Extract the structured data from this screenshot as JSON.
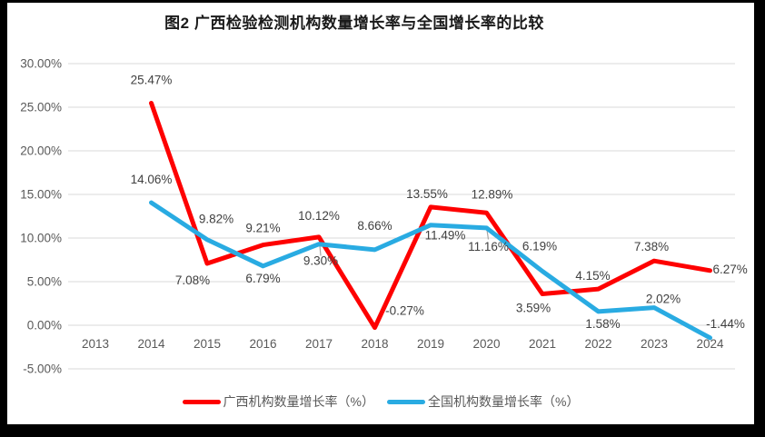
{
  "chart_data": {
    "type": "line",
    "title": "图2 广西检验检测机构数量增长率与全国增长率的比较",
    "categories": [
      "2013",
      "2014",
      "2015",
      "2016",
      "2017",
      "2018",
      "2019",
      "2020",
      "2021",
      "2022",
      "2023",
      "2024"
    ],
    "series": [
      {
        "name": "广西机构数量增长率（%）",
        "color": "#fe0000",
        "values": [
          null,
          25.47,
          7.08,
          9.21,
          10.12,
          -0.27,
          13.55,
          12.89,
          3.59,
          4.15,
          7.38,
          6.27
        ]
      },
      {
        "name": "全国机构数量增长率（%）",
        "color": "#29abe2",
        "values": [
          null,
          14.06,
          9.82,
          6.79,
          9.3,
          8.66,
          11.49,
          11.16,
          6.19,
          1.58,
          2.02,
          -1.44
        ]
      }
    ],
    "xlabel": "",
    "ylabel": "",
    "ylim": [
      -5,
      30
    ],
    "ytick_step": 5,
    "ytick_format": "0.00%",
    "grid": true,
    "legend_position": "bottom",
    "label_format": "0.00%"
  },
  "colors": {
    "grid_line": "#d9d9d9",
    "axis_text": "#595959",
    "data_label_text": "#404040",
    "leader_line": "#a6a6a6",
    "frame_border": "#000000",
    "background": "#ffffff"
  }
}
